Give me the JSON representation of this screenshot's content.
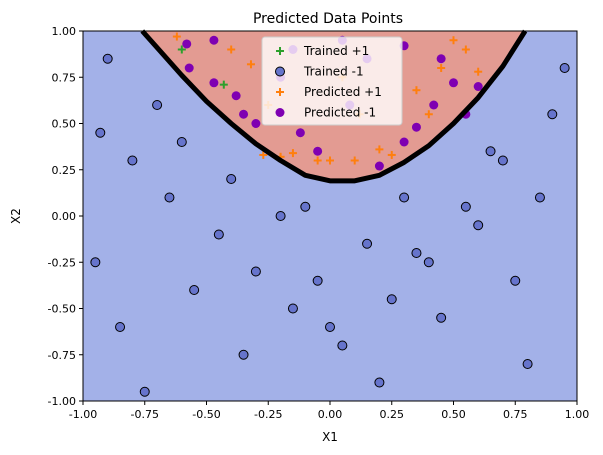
{
  "chart_data": {
    "type": "scatter",
    "title": "Predicted Data Points",
    "xlabel": "X1",
    "ylabel": "X2",
    "xlim": [
      -1.0,
      1.0
    ],
    "ylim": [
      -1.0,
      1.0
    ],
    "x_ticks": [
      "-1.00",
      "-0.75",
      "-0.50",
      "-0.25",
      "0.00",
      "0.25",
      "0.50",
      "0.75",
      "1.00"
    ],
    "y_ticks": [
      "-1.00",
      "-0.75",
      "-0.50",
      "-0.25",
      "0.00",
      "0.25",
      "0.50",
      "0.75",
      "1.00"
    ],
    "grid": false,
    "legend_position": "top-center",
    "background_regions": {
      "negative_class_color": "#a3b1e8",
      "positive_class_color": "#e39b92"
    },
    "decision_boundary": {
      "description": "black parabolic boundary",
      "x": [
        -0.76,
        -0.7,
        -0.6,
        -0.5,
        -0.4,
        -0.3,
        -0.2,
        -0.1,
        0.0,
        0.1,
        0.2,
        0.3,
        0.4,
        0.5,
        0.6,
        0.7,
        0.79
      ],
      "y": [
        1.0,
        0.91,
        0.76,
        0.62,
        0.5,
        0.39,
        0.3,
        0.22,
        0.19,
        0.19,
        0.22,
        0.29,
        0.38,
        0.5,
        0.64,
        0.81,
        1.0
      ]
    },
    "series": [
      {
        "name": "Trained +1",
        "marker": "plus",
        "color": "#2ca02c",
        "x": [
          -0.6,
          -0.43
        ],
        "y": [
          0.9,
          0.71
        ]
      },
      {
        "name": "Trained -1",
        "marker": "circle",
        "color": "#6674cc",
        "x": [
          -0.93,
          -0.8,
          -0.65,
          -0.45,
          -0.3,
          -0.15,
          0.05,
          0.2,
          0.35,
          0.55,
          0.7,
          0.9,
          -0.85,
          -0.55,
          -0.2,
          0.15,
          0.45,
          0.8,
          -0.95,
          -0.7,
          -0.4,
          -0.05,
          0.3,
          0.6,
          0.95,
          -0.75,
          -0.35,
          0.0,
          0.25,
          0.65,
          0.85,
          -0.9,
          -0.6,
          -0.1,
          0.4,
          0.75
        ],
        "y": [
          0.45,
          0.3,
          0.1,
          -0.1,
          -0.3,
          -0.5,
          -0.7,
          -0.9,
          -0.2,
          0.05,
          0.3,
          0.55,
          -0.6,
          -0.4,
          0.0,
          -0.15,
          -0.55,
          -0.8,
          -0.25,
          0.6,
          0.2,
          -0.35,
          0.1,
          -0.05,
          0.8,
          -0.95,
          -0.75,
          -0.6,
          -0.45,
          0.35,
          0.1,
          0.85,
          0.4,
          0.05,
          -0.25,
          -0.35
        ]
      },
      {
        "name": "Predicted +1",
        "marker": "plus",
        "color": "#ff7f0e",
        "x": [
          -0.62,
          -0.4,
          -0.32,
          -0.27,
          -0.2,
          -0.15,
          -0.05,
          0.0,
          0.1,
          0.2,
          0.25,
          0.4,
          0.5,
          0.6,
          0.55,
          0.12,
          -0.25,
          0.05,
          0.35,
          0.45
        ],
        "y": [
          0.97,
          0.9,
          0.82,
          0.33,
          0.32,
          0.34,
          0.3,
          0.3,
          0.3,
          0.36,
          0.33,
          0.55,
          0.95,
          0.78,
          0.9,
          0.55,
          0.6,
          0.75,
          0.68,
          0.8
        ]
      },
      {
        "name": "Predicted -1",
        "marker": "circle",
        "color": "#7f00b2",
        "x": [
          -0.57,
          -0.47,
          -0.38,
          -0.3,
          -0.12,
          0.05,
          0.15,
          0.3,
          0.45,
          0.5,
          0.35,
          -0.35,
          -0.58,
          -0.05,
          0.2,
          0.6,
          0.42,
          0.08,
          -0.2,
          0.3,
          0.55,
          -0.47,
          -0.15
        ],
        "y": [
          0.8,
          0.72,
          0.65,
          0.5,
          0.45,
          0.95,
          0.85,
          0.92,
          0.85,
          0.72,
          0.48,
          0.55,
          0.93,
          0.35,
          0.27,
          0.7,
          0.6,
          0.6,
          0.75,
          0.4,
          0.55,
          0.95,
          0.9
        ]
      }
    ]
  }
}
